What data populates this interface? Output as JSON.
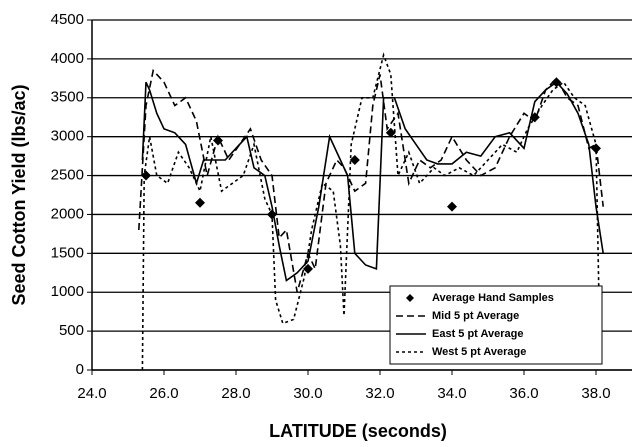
{
  "chart_data": {
    "type": "line",
    "xlabel": "LATITUDE (seconds)",
    "ylabel": "Seed Cotton Yield (lbs/ac)",
    "xlim": [
      24,
      39
    ],
    "ylim": [
      0,
      4500
    ],
    "xticks": [
      {
        "value": 24,
        "label": "24.0"
      },
      {
        "value": 26,
        "label": "26.0"
      },
      {
        "value": 28,
        "label": "28.0"
      },
      {
        "value": 30,
        "label": "30.0"
      },
      {
        "value": 32,
        "label": "32.0"
      },
      {
        "value": 34,
        "label": "34.0"
      },
      {
        "value": 36,
        "label": "36.0"
      },
      {
        "value": 38,
        "label": "38.0"
      }
    ],
    "yticks": [
      0,
      500,
      1000,
      1500,
      2000,
      2500,
      3000,
      3500,
      4000,
      4500
    ],
    "grid": true,
    "legend": "lower right",
    "series": [
      {
        "name": "Average Hand Samples",
        "color": "#000000",
        "style": "markers",
        "x": [
          25.5,
          27.0,
          27.5,
          29.0,
          30.0,
          31.3,
          32.3,
          34.0,
          36.3,
          36.9,
          38.0
        ],
        "values": [
          2500,
          2150,
          2950,
          2000,
          1300,
          2700,
          3050,
          2100,
          3250,
          3700,
          2850
        ]
      },
      {
        "name": "Mid 5 pt Average",
        "color": "#000000",
        "style": "dashed",
        "x": [
          25.3,
          25.5,
          25.7,
          26.0,
          26.3,
          26.6,
          26.9,
          27.2,
          27.5,
          27.8,
          28.1,
          28.4,
          28.7,
          29.0,
          29.2,
          29.4,
          29.7,
          30.0,
          30.2,
          30.5,
          30.8,
          31.0,
          31.3,
          31.6,
          31.8,
          32.0,
          32.2,
          32.5,
          32.8,
          33.1,
          33.4,
          33.7,
          34.0,
          34.4,
          34.8,
          35.2,
          35.6,
          36.0,
          36.3,
          36.6,
          36.9,
          37.2,
          37.5,
          37.8,
          38.0,
          38.2
        ],
        "values": [
          1800,
          3400,
          3850,
          3700,
          3400,
          3500,
          3200,
          2500,
          3000,
          2700,
          2900,
          3100,
          2700,
          2500,
          1700,
          1800,
          1000,
          1500,
          1300,
          2400,
          2700,
          2600,
          2300,
          2400,
          3400,
          3800,
          3100,
          3300,
          2400,
          2700,
          2600,
          2700,
          3000,
          2700,
          2500,
          2600,
          3000,
          3300,
          3200,
          3600,
          3750,
          3500,
          3400,
          2850,
          2900,
          2100
        ]
      },
      {
        "name": "East 5 pt Average",
        "color": "#000000",
        "style": "solid",
        "x": [
          25.4,
          25.5,
          25.6,
          25.8,
          26.0,
          26.3,
          26.6,
          26.9,
          27.1,
          27.4,
          27.7,
          28.0,
          28.3,
          28.5,
          28.8,
          29.0,
          29.2,
          29.4,
          29.7,
          30.0,
          30.3,
          30.6,
          30.9,
          31.1,
          31.3,
          31.6,
          31.9,
          32.1,
          32.4,
          32.7,
          33.0,
          33.3,
          33.6,
          34.0,
          34.4,
          34.8,
          35.2,
          35.6,
          36.0,
          36.3,
          36.6,
          36.9,
          37.2,
          37.5,
          37.8,
          38.0,
          38.2
        ],
        "values": [
          2700,
          3700,
          3600,
          3300,
          3100,
          3050,
          2900,
          2400,
          2700,
          2700,
          2700,
          2850,
          3000,
          2600,
          2500,
          2100,
          1600,
          1150,
          1250,
          1400,
          2100,
          3000,
          2700,
          2500,
          1500,
          1350,
          1300,
          3500,
          3500,
          3100,
          2900,
          2700,
          2650,
          2650,
          2800,
          2750,
          3000,
          3050,
          2850,
          3450,
          3600,
          3700,
          3550,
          3300,
          2900,
          2100,
          1500
        ]
      },
      {
        "name": "West 5 pt Average",
        "color": "#000000",
        "style": "dotted",
        "x": [
          25.4,
          25.45,
          25.6,
          25.8,
          26.1,
          26.4,
          26.7,
          27.0,
          27.3,
          27.6,
          27.9,
          28.2,
          28.5,
          28.8,
          29.0,
          29.1,
          29.3,
          29.6,
          29.9,
          30.1,
          30.4,
          30.7,
          30.9,
          31.0,
          31.2,
          31.5,
          31.8,
          32.1,
          32.3,
          32.5,
          32.8,
          33.1,
          33.5,
          33.8,
          34.2,
          34.6,
          35.0,
          35.4,
          35.8,
          36.1,
          36.5,
          36.8,
          37.1,
          37.4,
          37.7,
          38.0,
          38.1
        ],
        "values": [
          0,
          2500,
          3000,
          2500,
          2400,
          2800,
          2600,
          2300,
          3000,
          2300,
          2400,
          2500,
          2900,
          2200,
          2000,
          900,
          600,
          650,
          1200,
          1800,
          2400,
          2300,
          1600,
          700,
          2900,
          3500,
          3500,
          4050,
          3800,
          2500,
          2800,
          2400,
          2600,
          2500,
          2600,
          2500,
          2700,
          2900,
          2800,
          3100,
          3400,
          3600,
          3700,
          3500,
          3400,
          2900,
          500
        ]
      }
    ]
  }
}
